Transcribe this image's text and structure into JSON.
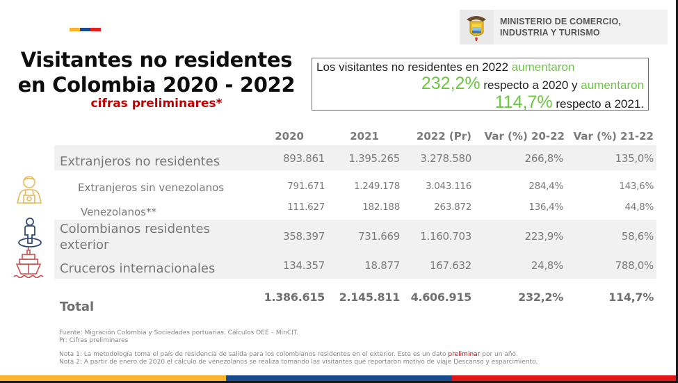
{
  "header": {
    "title_line1": "Visitantes no residentes",
    "title_line2": "en Colombia 2020 - 2022",
    "subtitle": "cifras preliminares*",
    "logo_line1": "MINISTERIO DE COMERCIO,",
    "logo_line2": "INDUSTRIA Y TURISMO"
  },
  "callout": {
    "text1": "Los visitantes no residentes en 2022 ",
    "increase1": "aumentaron",
    "value1": "232,2%",
    "text2": " respecto a 2020 y ",
    "increase2": "aumentaron",
    "value2": "114,7%",
    "text3": " respecto a 2021."
  },
  "table": {
    "columns": [
      "2020",
      "2021",
      "2022 (Pr)",
      "Var (%) 20-22",
      "Var (%) 21-22"
    ],
    "rows": [
      {
        "label": "Extranjeros no residentes",
        "values": [
          "893.861",
          "1.395.265",
          "3.278.580",
          "266,8%",
          "135,0%"
        ]
      },
      {
        "label": "Extranjeros sin venezolanos",
        "values": [
          "791.671",
          "1.249.178",
          "3.043.116",
          "284,4%",
          "143,6%"
        ]
      },
      {
        "label": "Venezolanos**",
        "values": [
          "111.627",
          "182.188",
          "263.872",
          "136,4%",
          "44,8%"
        ]
      },
      {
        "label_line1": "Colombianos residentes",
        "label_line2": "exterior",
        "values": [
          "358.397",
          "731.669",
          "1.160.703",
          "223,9%",
          "58,6%"
        ]
      },
      {
        "label": "Cruceros internacionales",
        "values": [
          "134.357",
          "18.877",
          "167.632",
          "24,8%",
          "788,0%"
        ]
      }
    ],
    "total": {
      "label": "Total",
      "values": [
        "1.386.615",
        "2.145.811",
        "4.606.915",
        "232,2%",
        "114,7%"
      ]
    }
  },
  "icons": {
    "tourist": "tourist-camera-icon",
    "resident": "person-location-icon",
    "cruise": "cruise-ship-icon"
  },
  "notes": {
    "source": "Fuente: Migración Colombia y Sociedades portuarias. Cálculos OEE – MinCIT.",
    "pr": "Pr: Cifras preliminares",
    "nota1_a": "Nota 1: La metodología toma el país de residencia de salida para los colombianos residentes en el exterior. Este es un dato ",
    "nota1_red": "preliminar",
    "nota1_b": " por un año.",
    "nota2": "Nota 2: A partir de enero de 2020 el cálculo de venezolanos se realiza tomando las visitantes que reportaron motivo de viaje Descanso y esparcimiento."
  },
  "colors": {
    "yellow": "#FBB42B",
    "blue": "#174C8C",
    "red": "#E21616",
    "green": "#6CC644",
    "title_red": "#C00000"
  }
}
